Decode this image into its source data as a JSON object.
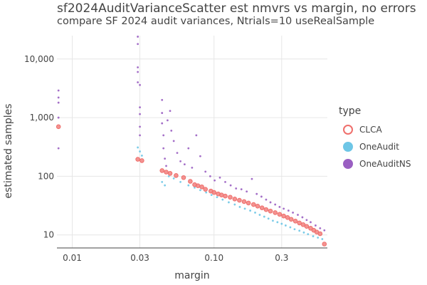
{
  "chart_data": {
    "type": "scatter",
    "title": "sf2024AuditVarianceScatter est nmvrs vs margin, no errors",
    "subtitle": "compare SF 2024 audit variances, Ntrials=10 useRealSample",
    "xlabel": "margin",
    "ylabel": "estimated samples",
    "x_scale": "log",
    "y_scale": "log",
    "xlim": [
      0.0078,
      0.63
    ],
    "ylim": [
      6,
      25000
    ],
    "x_ticks": [
      0.01,
      0.03,
      0.1,
      0.3
    ],
    "x_tick_labels": [
      "0.01",
      "0.03",
      "0.10",
      "0.3"
    ],
    "y_ticks": [
      10,
      100,
      1000,
      10000
    ],
    "y_tick_labels": [
      "10",
      "100",
      "1,000",
      "10,000"
    ],
    "grid": true,
    "legend_title": "type",
    "legend_position": "right",
    "series": [
      {
        "name": "CLCA",
        "color": "#ef6f6c",
        "marker": "circle",
        "points": [
          [
            0.008,
            700
          ],
          [
            0.029,
            195
          ],
          [
            0.031,
            185
          ],
          [
            0.043,
            125
          ],
          [
            0.046,
            118
          ],
          [
            0.049,
            112
          ],
          [
            0.054,
            103
          ],
          [
            0.061,
            95
          ],
          [
            0.068,
            82
          ],
          [
            0.073,
            72
          ],
          [
            0.077,
            69
          ],
          [
            0.082,
            66
          ],
          [
            0.087,
            60
          ],
          [
            0.095,
            56
          ],
          [
            0.1,
            53
          ],
          [
            0.107,
            50
          ],
          [
            0.113,
            48
          ],
          [
            0.12,
            46
          ],
          [
            0.13,
            44
          ],
          [
            0.14,
            41
          ],
          [
            0.151,
            39
          ],
          [
            0.163,
            37
          ],
          [
            0.175,
            35
          ],
          [
            0.19,
            33
          ],
          [
            0.203,
            31
          ],
          [
            0.218,
            29
          ],
          [
            0.233,
            27
          ],
          [
            0.25,
            25.5
          ],
          [
            0.27,
            24
          ],
          [
            0.29,
            22.5
          ],
          [
            0.31,
            21
          ],
          [
            0.33,
            19.8
          ],
          [
            0.35,
            18.5
          ],
          [
            0.375,
            17.2
          ],
          [
            0.4,
            16
          ],
          [
            0.425,
            15
          ],
          [
            0.45,
            14
          ],
          [
            0.48,
            13
          ],
          [
            0.505,
            12
          ],
          [
            0.53,
            11.2
          ],
          [
            0.56,
            10.5
          ],
          [
            0.6,
            7
          ]
        ]
      },
      {
        "name": "OneAudit",
        "color": "#6ec6e6",
        "marker": "dot",
        "points": [
          [
            0.029,
            310
          ],
          [
            0.03,
            265
          ],
          [
            0.031,
            225
          ],
          [
            0.043,
            80
          ],
          [
            0.045,
            70
          ],
          [
            0.048,
            100
          ],
          [
            0.052,
            92
          ],
          [
            0.058,
            80
          ],
          [
            0.066,
            70
          ],
          [
            0.073,
            64
          ],
          [
            0.08,
            58
          ],
          [
            0.088,
            53
          ],
          [
            0.096,
            48
          ],
          [
            0.105,
            44
          ],
          [
            0.115,
            40
          ],
          [
            0.127,
            36
          ],
          [
            0.14,
            33
          ],
          [
            0.152,
            30
          ],
          [
            0.165,
            28
          ],
          [
            0.18,
            26
          ],
          [
            0.195,
            24
          ],
          [
            0.21,
            22
          ],
          [
            0.226,
            20.5
          ],
          [
            0.242,
            19
          ],
          [
            0.26,
            17.5
          ],
          [
            0.28,
            16.5
          ],
          [
            0.3,
            15.5
          ],
          [
            0.32,
            14.5
          ],
          [
            0.345,
            13.5
          ],
          [
            0.37,
            12.5
          ],
          [
            0.4,
            11.8
          ],
          [
            0.43,
            11
          ],
          [
            0.46,
            10.3
          ],
          [
            0.5,
            9.5
          ],
          [
            0.54,
            9
          ],
          [
            0.58,
            8.5
          ]
        ]
      },
      {
        "name": "OneAuditNS",
        "color": "#9a5fc2",
        "marker": "dot",
        "points": [
          [
            0.008,
            2900
          ],
          [
            0.008,
            2200
          ],
          [
            0.008,
            1800
          ],
          [
            0.008,
            1000
          ],
          [
            0.008,
            300
          ],
          [
            0.029,
            24000
          ],
          [
            0.029,
            18000
          ],
          [
            0.029,
            7200
          ],
          [
            0.029,
            6000
          ],
          [
            0.029,
            4000
          ],
          [
            0.03,
            3600
          ],
          [
            0.03,
            1500
          ],
          [
            0.03,
            1150
          ],
          [
            0.03,
            700
          ],
          [
            0.03,
            500
          ],
          [
            0.043,
            2000
          ],
          [
            0.043,
            1200
          ],
          [
            0.043,
            800
          ],
          [
            0.044,
            500
          ],
          [
            0.044,
            300
          ],
          [
            0.045,
            200
          ],
          [
            0.046,
            150
          ],
          [
            0.047,
            900
          ],
          [
            0.049,
            1300
          ],
          [
            0.05,
            600
          ],
          [
            0.052,
            400
          ],
          [
            0.055,
            250
          ],
          [
            0.058,
            180
          ],
          [
            0.062,
            160
          ],
          [
            0.066,
            300
          ],
          [
            0.07,
            140
          ],
          [
            0.075,
            500
          ],
          [
            0.08,
            220
          ],
          [
            0.087,
            120
          ],
          [
            0.094,
            100
          ],
          [
            0.101,
            85
          ],
          [
            0.11,
            95
          ],
          [
            0.12,
            80
          ],
          [
            0.131,
            70
          ],
          [
            0.143,
            62
          ],
          [
            0.156,
            60
          ],
          [
            0.17,
            55
          ],
          [
            0.185,
            90
          ],
          [
            0.2,
            50
          ],
          [
            0.216,
            45
          ],
          [
            0.233,
            40
          ],
          [
            0.25,
            36
          ],
          [
            0.27,
            33
          ],
          [
            0.29,
            30
          ],
          [
            0.31,
            28
          ],
          [
            0.335,
            26
          ],
          [
            0.36,
            24
          ],
          [
            0.39,
            22
          ],
          [
            0.42,
            20
          ],
          [
            0.45,
            18
          ],
          [
            0.48,
            16.5
          ],
          [
            0.52,
            14.5
          ],
          [
            0.56,
            13
          ],
          [
            0.6,
            12
          ]
        ]
      }
    ]
  }
}
